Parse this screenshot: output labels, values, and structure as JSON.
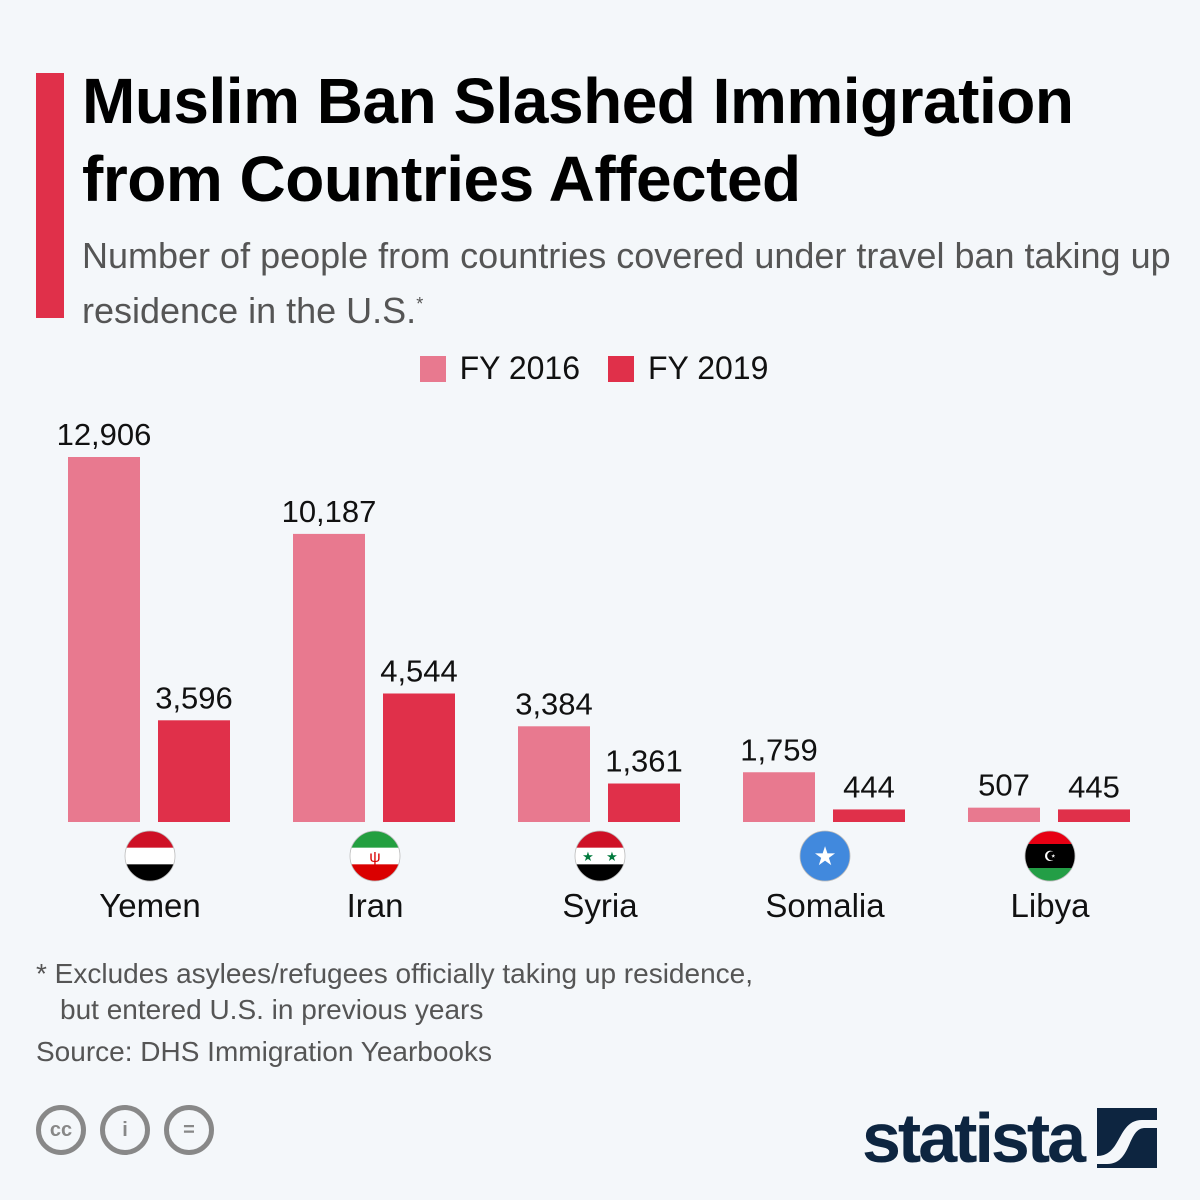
{
  "chart_data": {
    "type": "bar",
    "title": "Muslim Ban Slashed Immigration from Countries Affected",
    "subtitle": "Number of people from countries covered under travel ban taking up residence in the U.S.",
    "subtitle_marker": "*",
    "categories": [
      "Yemen",
      "Iran",
      "Syria",
      "Somalia",
      "Libya"
    ],
    "flags": [
      "yemen-flag-icon",
      "iran-flag-icon",
      "syria-flag-icon",
      "somalia-flag-icon",
      "libya-flag-icon"
    ],
    "series": [
      {
        "name": "FY 2016",
        "color": "#e8798f",
        "values": [
          12906,
          10187,
          3384,
          1759,
          507
        ],
        "labels": [
          "12,906",
          "10,187",
          "3,384",
          "1,759",
          "507"
        ]
      },
      {
        "name": "FY 2019",
        "color": "#e0304a",
        "values": [
          3596,
          4544,
          1361,
          444,
          445
        ],
        "labels": [
          "3,596",
          "4,544",
          "1,361",
          "444",
          "445"
        ]
      }
    ],
    "ylim": [
      0,
      12906
    ],
    "grid": false,
    "legend_position": "top-center"
  },
  "footnote_line1": "* Excludes asylees/refugees officially taking up residence,",
  "footnote_line2": "but entered U.S. in previous years",
  "source": "Source: DHS Immigration Yearbooks",
  "brand": "statista",
  "accent_color": "#e0304a",
  "license_icons": [
    "cc-icon",
    "attribution-icon",
    "no-derivatives-icon"
  ]
}
